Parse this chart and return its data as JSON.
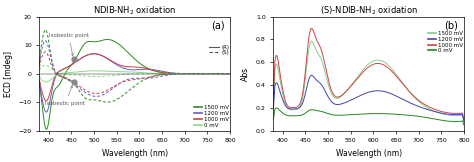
{
  "title_a": "NDIB-NH$_2$ oxidation",
  "title_b": "(S)-NDIB-NH$_2$ oxidation",
  "label_a": "(a)",
  "label_b": "(b)",
  "xlabel": "Wavelength (nm)",
  "ylabel_a": "ECD [mdeg]",
  "ylabel_b": "Abs",
  "xlim": [
    380,
    800
  ],
  "ylim_a": [
    -20,
    20
  ],
  "ylim_b": [
    0.0,
    1.0
  ],
  "yticks_a": [
    -20,
    -10,
    0,
    10,
    20
  ],
  "yticks_b": [
    0.0,
    0.2,
    0.4,
    0.6,
    0.8,
    1.0
  ],
  "colors": {
    "1500mV": "#2E8B22",
    "1200mV": "#6060BB",
    "1000mV": "#CC4444",
    "0mV": "#88DD88"
  },
  "colors_b": {
    "1500mV": "#88CC88",
    "1200mV": "#4444AA",
    "1000mV": "#CC4444",
    "0mV": "#228822"
  },
  "bg_color": "#ffffff",
  "annot1": "Isobestic point",
  "annot2": "Isobestic point"
}
